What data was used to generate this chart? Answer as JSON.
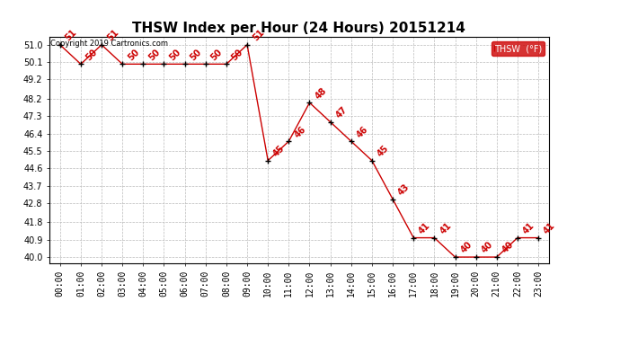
{
  "title": "THSW Index per Hour (24 Hours) 20151214",
  "copyright": "Copyright 2019 Cartronics.com",
  "legend_label": "THSW  (°F)",
  "hours": [
    0,
    1,
    2,
    3,
    4,
    5,
    6,
    7,
    8,
    9,
    10,
    11,
    12,
    13,
    14,
    15,
    16,
    17,
    18,
    19,
    20,
    21,
    22,
    23
  ],
  "values": [
    51,
    50,
    51,
    50,
    50,
    50,
    50,
    50,
    50,
    51,
    45,
    46,
    48,
    47,
    46,
    45,
    43,
    41,
    41,
    40,
    40,
    40,
    41,
    41
  ],
  "yticks": [
    40.0,
    40.9,
    41.8,
    42.8,
    43.7,
    44.6,
    45.5,
    46.4,
    47.3,
    48.2,
    49.2,
    50.1,
    51.0
  ],
  "line_color": "#cc0000",
  "marker_color": "#000000",
  "legend_bg": "#cc0000",
  "legend_text_color": "#ffffff",
  "bg_color": "#ffffff",
  "grid_color": "#bbbbbb",
  "title_fontsize": 11,
  "tick_fontsize": 7,
  "annotation_fontsize": 7,
  "copyright_fontsize": 6,
  "legend_fontsize": 7,
  "ylim_min": 39.7,
  "ylim_max": 51.4
}
